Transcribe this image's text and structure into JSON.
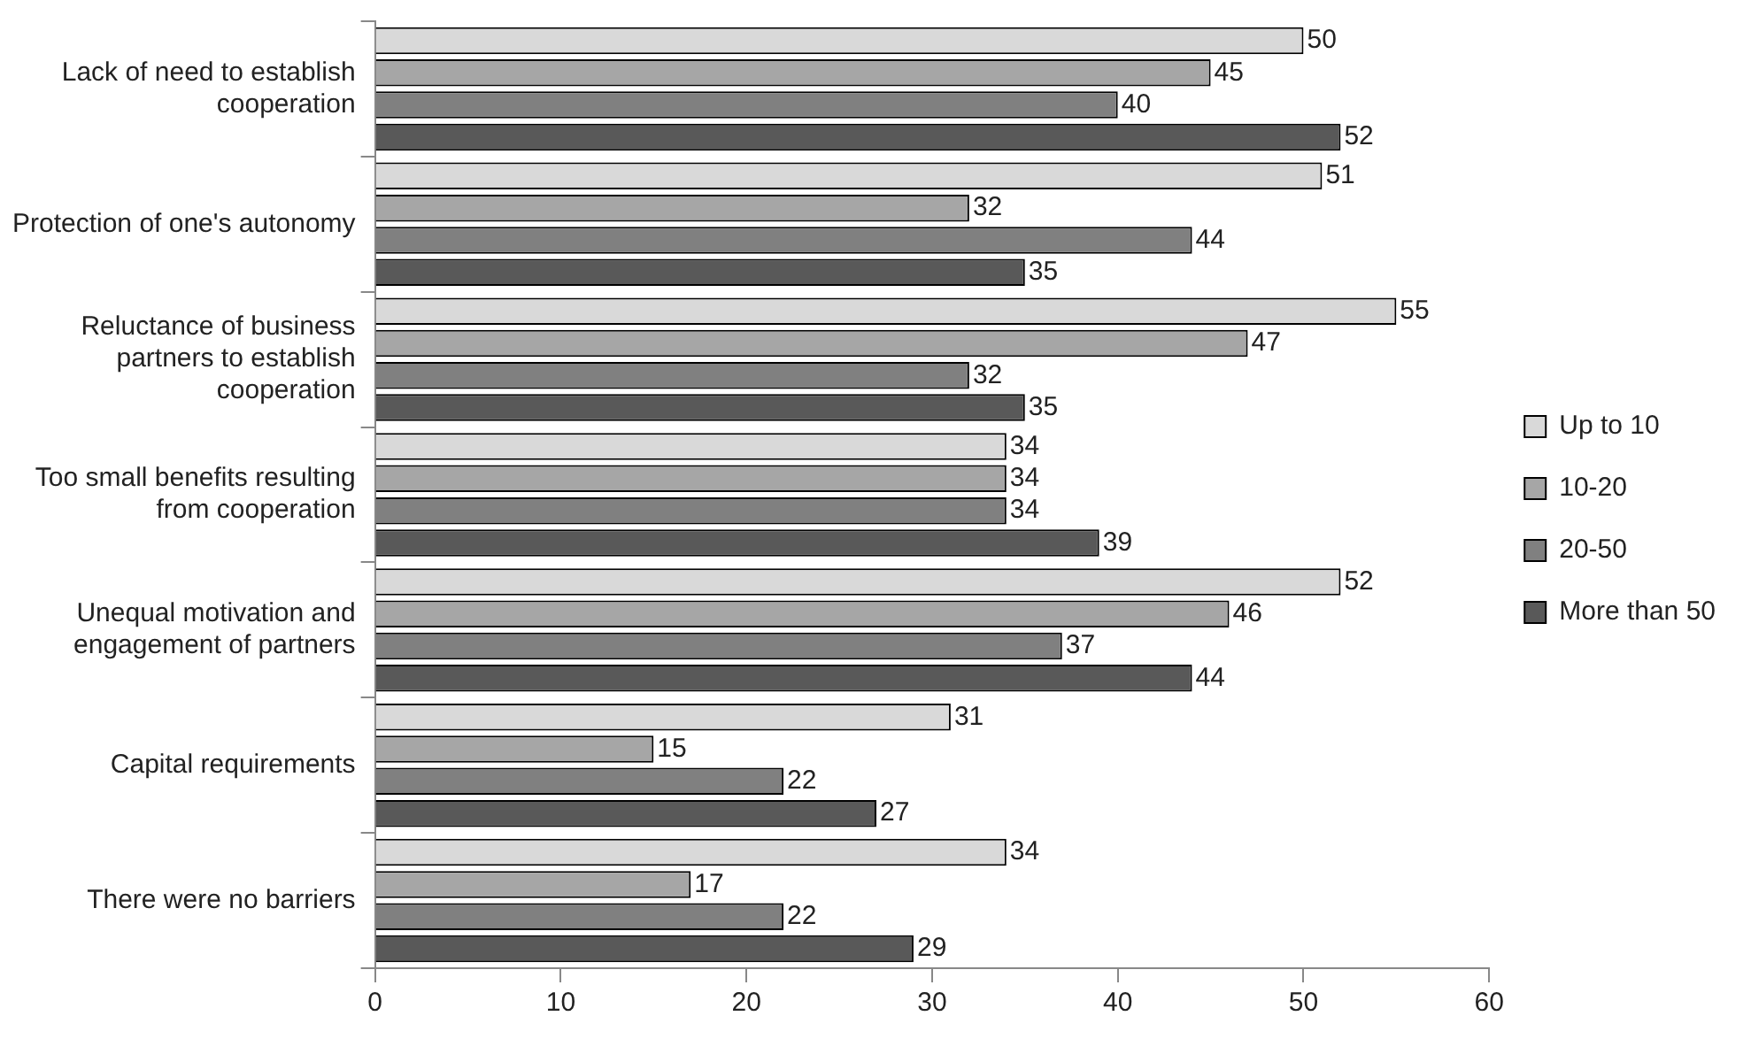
{
  "chart_data": {
    "type": "bar",
    "orientation": "horizontal",
    "categories": [
      "Lack of need to establish cooperation",
      "Protection of one's autonomy",
      "Reluctance of business partners to establish cooperation",
      "Too small benefits resulting from cooperation",
      "Unequal motivation and engagement of partners",
      "Capital requirements",
      "There were no barriers"
    ],
    "series": [
      {
        "name": "Up to 10",
        "color": "#d9d9d9",
        "values": [
          50,
          51,
          55,
          34,
          52,
          31,
          34
        ]
      },
      {
        "name": "10-20",
        "color": "#a6a6a6",
        "values": [
          45,
          32,
          47,
          34,
          46,
          15,
          17
        ]
      },
      {
        "name": "20-50",
        "color": "#808080",
        "values": [
          40,
          44,
          32,
          34,
          37,
          22,
          22
        ]
      },
      {
        "name": "More than 50",
        "color": "#595959",
        "values": [
          52,
          35,
          35,
          39,
          44,
          27,
          29
        ]
      }
    ],
    "xlim": [
      0,
      60
    ],
    "xticks": [
      0,
      10,
      20,
      30,
      40,
      50,
      60
    ],
    "grid": false,
    "legend": "right",
    "data_labels": true
  }
}
